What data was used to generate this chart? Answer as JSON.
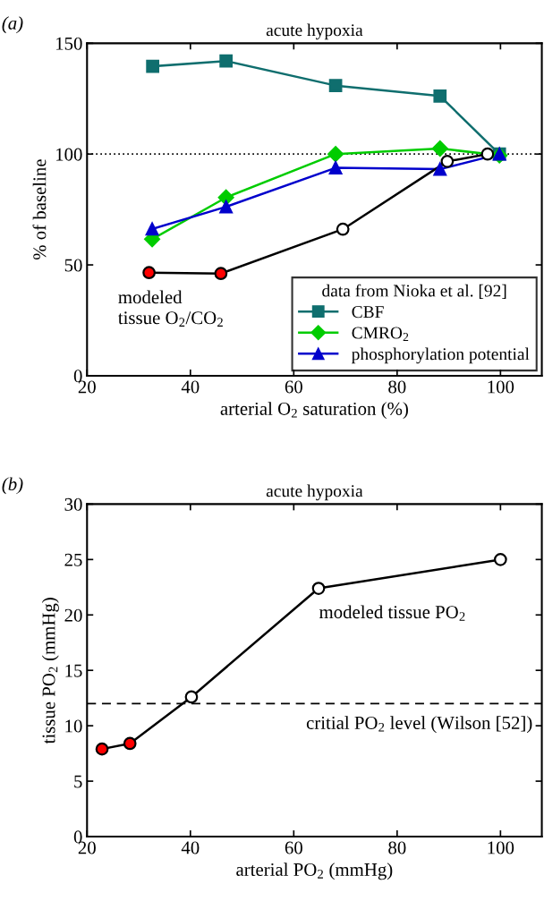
{
  "chart_data": [
    {
      "type": "line",
      "title": "acute hypoxia",
      "xlabel": "arterial O$_{2}$ saturation (%)",
      "ylabel": "% of baseline",
      "xlim": [
        20,
        108
      ],
      "xticks": [
        20,
        40,
        60,
        80,
        100
      ],
      "ylim": [
        0,
        150
      ],
      "yticks": [
        0,
        50,
        100,
        150
      ],
      "legend": "bottom right",
      "legend_title": "data from Nioka et al. [92]",
      "grid": false,
      "series": [
        {
          "name": "CBF",
          "color": "#0f6e6e",
          "marker": "square",
          "x": [
            32.7,
            46.9,
            68.1,
            88.3,
            99.8
          ],
          "values": [
            139.6,
            142,
            130.9,
            126.2,
            100
          ]
        },
        {
          "name": "CMRO$_{2}$",
          "color": "#00cc00",
          "marker": "diamond",
          "x": [
            32.6,
            46.9,
            68.1,
            88.3,
            99.8
          ],
          "values": [
            61.6,
            80.4,
            100,
            102.5,
            99.4
          ]
        },
        {
          "name": "phosphorylation potential",
          "color": "#0000cc",
          "marker": "triangle",
          "x": [
            32.6,
            46.9,
            68.1,
            88.3,
            99.8
          ],
          "values": [
            66.2,
            76.2,
            93.8,
            93.2,
            100
          ]
        },
        {
          "color": "#000000",
          "marker": "circle",
          "colors": [
            "#ff0000",
            "#ff0000",
            "#ffffff",
            "#ffffff",
            "#ffffff"
          ],
          "x": [
            32.0,
            45.9,
            69.5,
            89.7,
            97.5
          ],
          "values": [
            46.5,
            46.1,
            66.1,
            96.7,
            100
          ]
        }
      ],
      "ref_lines": [
        {
          "axis": "y",
          "value": 100,
          "line_style": "dotted",
          "color": "#000000"
        }
      ],
      "annotations": [
        "(a)",
        "modeled\ntissue O$_{2}$/CO$_{2}$"
      ]
    },
    {
      "type": "line",
      "title": "acute hypoxia",
      "xlabel": "arterial PO$_{2}$ (mmHg)",
      "ylabel": "tissue PO$_{2}$ (mmHg)",
      "xlim": [
        20,
        108
      ],
      "xticks": [
        20,
        40,
        60,
        80,
        100
      ],
      "ylim": [
        0,
        30
      ],
      "yticks": [
        0,
        5,
        10,
        15,
        20,
        25,
        30
      ],
      "grid": false,
      "series": [
        {
          "color": "#000000",
          "marker": "circle",
          "colors": [
            "#ff0000",
            "#ff0000",
            "#ffffff",
            "#ffffff",
            "#ffffff"
          ],
          "x": [
            22.9,
            28.3,
            40.2,
            64.8,
            100
          ],
          "values": [
            7.9,
            8.4,
            12.6,
            22.4,
            25.0
          ]
        }
      ],
      "ref_lines": [
        {
          "axis": "y",
          "value": 12,
          "line_style": "dashed",
          "color": "#000000",
          "label": "critial PO$_{2}$ level (Wilson [52])"
        }
      ],
      "annotations": [
        "(b)",
        "modeled tissue PO$_{2}$"
      ]
    }
  ]
}
